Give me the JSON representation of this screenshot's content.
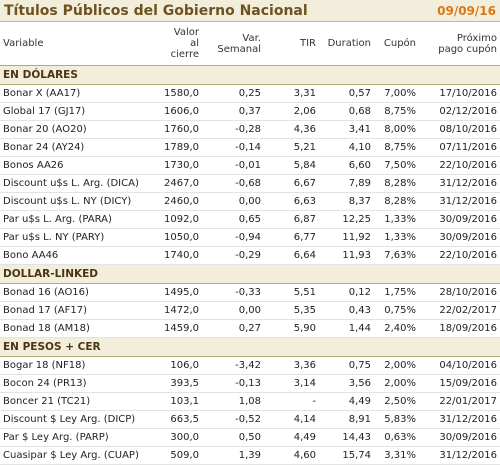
{
  "header": {
    "title": "Títulos Públicos del Gobierno Nacional",
    "date": "09/09/16"
  },
  "table": {
    "columns": [
      "Variable",
      "Valor al\ncierre",
      "Var.\nSemanal",
      "TIR",
      "Duration",
      "Cupón",
      "Próximo\npago cupón"
    ],
    "sections": [
      {
        "title": "EN DÓLARES",
        "rows": [
          [
            "Bonar X (AA17)",
            "1580,0",
            "0,25",
            "3,31",
            "0,57",
            "7,00%",
            "17/10/2016"
          ],
          [
            "Global 17 (GJ17)",
            "1606,0",
            "0,37",
            "2,06",
            "0,68",
            "8,75%",
            "02/12/2016"
          ],
          [
            "Bonar 20 (AO20)",
            "1760,0",
            "-0,28",
            "4,36",
            "3,41",
            "8,00%",
            "08/10/2016"
          ],
          [
            "Bonar 24 (AY24)",
            "1789,0",
            "-0,14",
            "5,21",
            "4,10",
            "8,75%",
            "07/11/2016"
          ],
          [
            "Bonos AA26",
            "1730,0",
            "-0,01",
            "5,84",
            "6,60",
            "7,50%",
            "22/10/2016"
          ],
          [
            "Discount u$s L. Arg. (DICA)",
            "2467,0",
            "-0,68",
            "6,67",
            "7,89",
            "8,28%",
            "31/12/2016"
          ],
          [
            "Discount u$s L. NY (DICY)",
            "2460,0",
            "0,00",
            "6,63",
            "8,37",
            "8,28%",
            "31/12/2016"
          ],
          [
            "Par u$s L. Arg. (PARA)",
            "1092,0",
            "0,65",
            "6,87",
            "12,25",
            "1,33%",
            "30/09/2016"
          ],
          [
            "Par u$s L. NY (PARY)",
            "1050,0",
            "-0,94",
            "6,77",
            "11,92",
            "1,33%",
            "30/09/2016"
          ],
          [
            "Bono AA46",
            "1740,0",
            "-0,29",
            "6,64",
            "11,93",
            "7,63%",
            "22/10/2016"
          ]
        ]
      },
      {
        "title": "DOLLAR-LINKED",
        "rows": [
          [
            "Bonad 16 (AO16)",
            "1495,0",
            "-0,33",
            "5,51",
            "0,12",
            "1,75%",
            "28/10/2016"
          ],
          [
            "Bonad 17 (AF17)",
            "1472,0",
            "0,00",
            "5,35",
            "0,43",
            "0,75%",
            "22/02/2017"
          ],
          [
            "Bonad 18 (AM18)",
            "1459,0",
            "0,27",
            "5,90",
            "1,44",
            "2,40%",
            "18/09/2016"
          ]
        ]
      },
      {
        "title": "EN PESOS + CER",
        "rows": [
          [
            "Bogar 18 (NF18)",
            "106,0",
            "-3,42",
            "3,36",
            "0,75",
            "2,00%",
            "04/10/2016"
          ],
          [
            "Bocon 24 (PR13)",
            "393,5",
            "-0,13",
            "3,14",
            "3,56",
            "2,00%",
            "15/09/2016"
          ],
          [
            "Boncer 21 (TC21)",
            "103,1",
            "1,08",
            "-",
            "4,49",
            "2,50%",
            "22/01/2017"
          ],
          [
            "Discount $ Ley Arg. (DICP)",
            "663,5",
            "-0,52",
            "4,14",
            "8,91",
            "5,83%",
            "31/12/2016"
          ],
          [
            "Par $ Ley Arg. (PARP)",
            "300,0",
            "0,50",
            "4,49",
            "14,43",
            "0,63%",
            "30/09/2016"
          ],
          [
            "Cuasipar $ Ley Arg. (CUAP)",
            "509,0",
            "1,39",
            "4,60",
            "15,74",
            "3,31%",
            "31/12/2016"
          ]
        ]
      }
    ]
  }
}
